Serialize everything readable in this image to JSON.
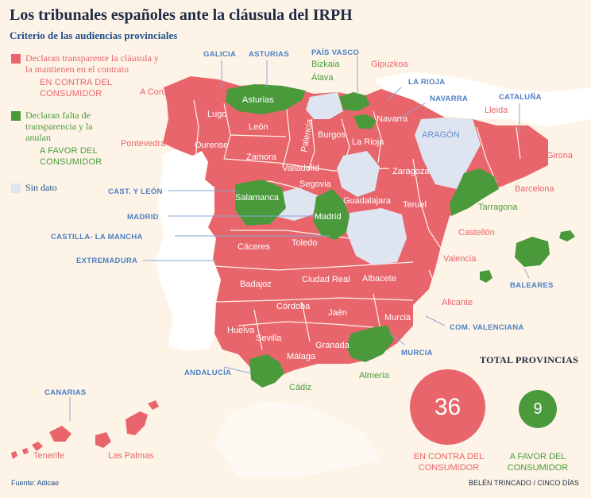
{
  "title": "Los tribunales españoles ante la cláusula del IRPH",
  "subtitle": "Criterio de las audiencias provinciales",
  "colors": {
    "red": "#e8656c",
    "green": "#4a9a3b",
    "nodata": "#dfe4f1",
    "blue_label": "#4a7fc4",
    "background": "#fdf4e7",
    "other_land": "#ffffff"
  },
  "legend": {
    "red_label": "Declaran transparente la cláusula y la mantienen en el contrato",
    "red_sub": "EN CONTRA DEL CONSUMIDOR",
    "green_label": "Declaran falta de transparencia y la anulan",
    "green_sub": "A FAVOR DEL CONSUMIDOR",
    "nodata_label": "Sin dato"
  },
  "provinces_inside": [
    "Lugo",
    "Ourense",
    "León",
    "Palencia",
    "Burgos",
    "Zamora",
    "Valladolid",
    "Segovia",
    "Salamanca",
    "Madrid",
    "Guadalajara",
    "Zaragoza",
    "Teruel",
    "Cáceres",
    "Toledo",
    "Badajoz",
    "Ciudad Real",
    "Albacete",
    "Córdoba",
    "Jaén",
    "Huelva",
    "Sevilla",
    "Granada",
    "Málaga",
    "Murcia",
    "Asturias",
    "Navarra",
    "La Rioja",
    "ARAGÓN"
  ],
  "provinces_outside": [
    "A Coruña",
    "Pontevedra",
    "Bizkaia",
    "Álava",
    "Gipuzkoa",
    "Lleida",
    "Girona",
    "Barcelona",
    "Tarragona",
    "Castellón",
    "Valencia",
    "Alicante",
    "Almería",
    "Cádiz",
    "Tenerife",
    "Las Palmas"
  ],
  "regions": [
    "GALICIA",
    "ASTURIAS",
    "PAÍS VASCO",
    "LA RIOJA",
    "NAVARRA",
    "CATALUÑA",
    "CAST. Y LEÓN",
    "MADRID",
    "CASTILLA- LA MANCHA",
    "EXTREMADURA",
    "ANDALUCÍA",
    "MURCIA",
    "COM. VALENCIANA",
    "BALEARES",
    "CANARIAS"
  ],
  "totals": {
    "title": "TOTAL PROVINCIAS",
    "against": {
      "value": "36",
      "label": "EN CONTRA DEL CONSUMIDOR"
    },
    "favor": {
      "value": "9",
      "label": "A FAVOR DEL CONSUMIDOR"
    }
  },
  "source": "Fuente: Adicae",
  "credit": "BELÉN TRINCADO / CINCO DÍAS"
}
